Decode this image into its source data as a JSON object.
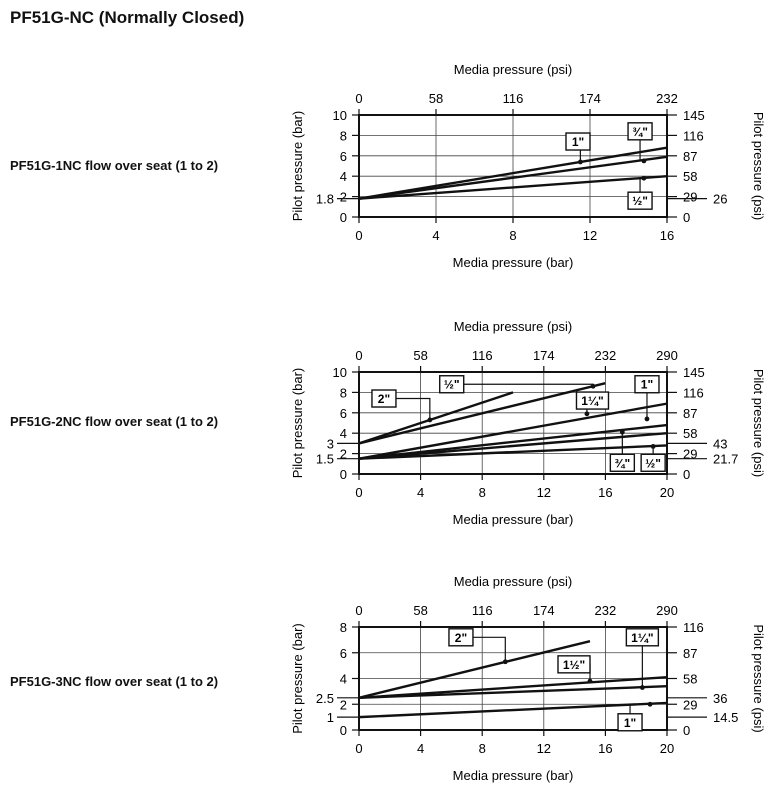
{
  "page_title": "PF51G-NC (Normally Closed)",
  "chart_data": [
    {
      "type": "line",
      "label": "PF51G-1NC flow over seat (1 to 2)",
      "xlabel_top": "Media pressure (psi)",
      "xlabel_bottom": "Media pressure (bar)",
      "ylabel_left": "Pilot pressure (bar)",
      "ylabel_right": "Pilot pressure (psi)",
      "xlim": [
        0,
        16
      ],
      "ylim": [
        0,
        10
      ],
      "x_ticks": [
        "0",
        "4",
        "8",
        "12",
        "16"
      ],
      "x_ticks_top": [
        "0",
        "58",
        "116",
        "174",
        "232"
      ],
      "y_ticks": [
        "0",
        "2",
        "4",
        "6",
        "8",
        "10"
      ],
      "y_ticks_right": [
        "0",
        "29",
        "58",
        "87",
        "116",
        "145"
      ],
      "y_marker_left": {
        "value": 1.8,
        "label": "1.8"
      },
      "y_marker_right": {
        "value": 1.8,
        "label": "26"
      },
      "series": [
        {
          "name": "1\"",
          "x": [
            0,
            16
          ],
          "y": [
            1.8,
            6.8
          ]
        },
        {
          "name": "3/4\"",
          "x": [
            0,
            16
          ],
          "y": [
            1.8,
            5.9
          ]
        },
        {
          "name": "1/2\"",
          "x": [
            0,
            16
          ],
          "y": [
            1.8,
            4.0
          ]
        }
      ],
      "callouts": [
        {
          "text": "1\"",
          "box_x": 12,
          "box_y": 7.4,
          "point": [
            11.5,
            5.4
          ],
          "place": "left"
        },
        {
          "text": "3/4\"",
          "box_x": 14.6,
          "box_y": 8.4,
          "point": [
            14.8,
            5.5
          ],
          "place": "above"
        },
        {
          "text": "1/2\"",
          "box_x": 14.6,
          "box_y": 1.6,
          "point": [
            14.8,
            3.8
          ],
          "place": "below"
        }
      ]
    },
    {
      "type": "line",
      "label": "PF51G-2NC flow over seat (1 to 2)",
      "xlabel_top": "Media pressure (psi)",
      "xlabel_bottom": "Media pressure (bar)",
      "ylabel_left": "Pilot pressure (bar)",
      "ylabel_right": "Pilot pressure (psi)",
      "xlim": [
        0,
        20
      ],
      "ylim": [
        0,
        10
      ],
      "x_ticks": [
        "0",
        "4",
        "8",
        "12",
        "16",
        "20"
      ],
      "x_ticks_top": [
        "0",
        "58",
        "116",
        "174",
        "232",
        "290"
      ],
      "y_ticks": [
        "0",
        "2",
        "4",
        "6",
        "8",
        "10"
      ],
      "y_ticks_right": [
        "0",
        "29",
        "58",
        "87",
        "116",
        "145"
      ],
      "y_markers_left": [
        {
          "value": 3,
          "label": "3"
        },
        {
          "value": 1.5,
          "label": "1.5"
        }
      ],
      "y_markers_right": [
        {
          "value": 3,
          "label": "43"
        },
        {
          "value": 1.5,
          "label": "21.7"
        }
      ],
      "series": [
        {
          "name": "2\"",
          "x": [
            0,
            10
          ],
          "y": [
            3,
            8
          ]
        },
        {
          "name": "1/2\"",
          "x": [
            0,
            16
          ],
          "y": [
            3,
            8.9
          ]
        },
        {
          "name": "1-1/4\"",
          "x": [
            0,
            20
          ],
          "y": [
            1.5,
            6.9
          ]
        },
        {
          "name": "1\"",
          "x": [
            0,
            20
          ],
          "y": [
            1.5,
            4.8
          ]
        },
        {
          "name": "3/4\"",
          "x": [
            0,
            20
          ],
          "y": [
            1.5,
            4.0
          ]
        },
        {
          "name": "1/2\" ",
          "x": [
            0,
            20
          ],
          "y": [
            1.5,
            2.8
          ]
        }
      ],
      "callouts": [
        {
          "text": "2\"",
          "box_x": 2.4,
          "box_y": 7.4,
          "point": [
            4.6,
            5.3
          ],
          "place": "left"
        },
        {
          "text": "1/2\"",
          "box_x": 6.8,
          "box_y": 8.8,
          "point": [
            15.2,
            8.6
          ],
          "place": "left"
        },
        {
          "text": "1-1/4\"",
          "box_x": 16.2,
          "box_y": 7.2,
          "point": [
            14.8,
            5.9
          ],
          "place": "left"
        },
        {
          "text": "1\"",
          "box_x": 18.7,
          "box_y": 8.8,
          "point": [
            18.7,
            5.4
          ],
          "place": "above"
        },
        {
          "text": "3/4\"",
          "box_x": 17.1,
          "box_y": 1.1,
          "point": [
            17.1,
            4.1
          ],
          "place": "below"
        },
        {
          "text": "1/2\"",
          "box_x": 19.1,
          "box_y": 1.1,
          "point": [
            19.1,
            2.7
          ],
          "place": "below"
        }
      ]
    },
    {
      "type": "line",
      "label": "PF51G-3NC flow over seat (1 to 2)",
      "xlabel_top": "Media pressure (psi)",
      "xlabel_bottom": "Media pressure (bar)",
      "ylabel_left": "Pilot pressure (bar)",
      "ylabel_right": "Pilot pressure (psi)",
      "xlim": [
        0,
        20
      ],
      "ylim": [
        0,
        8
      ],
      "x_ticks": [
        "0",
        "4",
        "8",
        "12",
        "16",
        "20"
      ],
      "x_ticks_top": [
        "0",
        "58",
        "116",
        "174",
        "232",
        "290"
      ],
      "y_ticks": [
        "0",
        "2",
        "4",
        "6",
        "8"
      ],
      "y_ticks_right": [
        "0",
        "29",
        "58",
        "87",
        "116"
      ],
      "y_markers_left": [
        {
          "value": 2.5,
          "label": "2.5"
        },
        {
          "value": 1,
          "label": "1"
        }
      ],
      "y_markers_right": [
        {
          "value": 2.5,
          "label": "36"
        },
        {
          "value": 1,
          "label": "14.5"
        }
      ],
      "series": [
        {
          "name": "2\"",
          "x": [
            0,
            15
          ],
          "y": [
            2.5,
            6.9
          ]
        },
        {
          "name": "1-1/2\"",
          "x": [
            0,
            20
          ],
          "y": [
            2.5,
            4.1
          ]
        },
        {
          "name": "1-1/4\"",
          "x": [
            0,
            20
          ],
          "y": [
            2.5,
            3.4
          ]
        },
        {
          "name": "1\"",
          "x": [
            0,
            20
          ],
          "y": [
            1,
            2.1
          ]
        }
      ],
      "callouts": [
        {
          "text": "2\"",
          "box_x": 7.4,
          "box_y": 7.2,
          "point": [
            9.5,
            5.3
          ],
          "place": "left"
        },
        {
          "text": "1-1/2\"",
          "box_x": 15,
          "box_y": 5.1,
          "point": [
            15,
            3.8
          ],
          "place": "left"
        },
        {
          "text": "1-1/4\"",
          "box_x": 18.4,
          "box_y": 7.2,
          "point": [
            18.4,
            3.3
          ],
          "place": "above"
        },
        {
          "text": "1\"",
          "box_x": 17.6,
          "box_y": 0.6,
          "point": [
            18.9,
            2.0
          ],
          "place": "below"
        }
      ]
    }
  ]
}
